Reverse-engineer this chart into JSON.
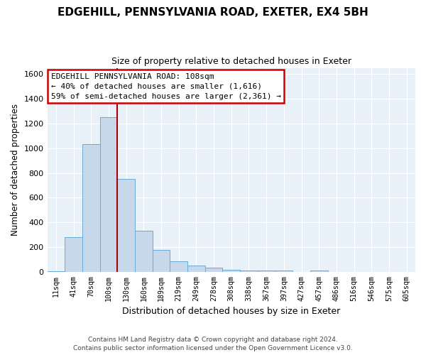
{
  "title": "EDGEHILL, PENNSYLVANIA ROAD, EXETER, EX4 5BH",
  "subtitle": "Size of property relative to detached houses in Exeter",
  "xlabel": "Distribution of detached houses by size in Exeter",
  "ylabel": "Number of detached properties",
  "bar_labels": [
    "11sqm",
    "41sqm",
    "70sqm",
    "100sqm",
    "130sqm",
    "160sqm",
    "189sqm",
    "219sqm",
    "249sqm",
    "278sqm",
    "308sqm",
    "338sqm",
    "367sqm",
    "397sqm",
    "427sqm",
    "457sqm",
    "486sqm",
    "516sqm",
    "546sqm",
    "575sqm",
    "605sqm"
  ],
  "bar_values": [
    5,
    280,
    1035,
    1250,
    750,
    330,
    175,
    85,
    48,
    35,
    18,
    8,
    8,
    8,
    0,
    8,
    0,
    0,
    0,
    0,
    0
  ],
  "bar_color": "#c8d8eb",
  "bar_edge_color": "#6aaad4",
  "vline_color": "#aa0000",
  "ylim": [
    0,
    1650
  ],
  "yticks": [
    0,
    200,
    400,
    600,
    800,
    1000,
    1200,
    1400,
    1600
  ],
  "annotation_title": "EDGEHILL PENNSYLVANIA ROAD: 108sqm",
  "annotation_line1": "← 40% of detached houses are smaller (1,616)",
  "annotation_line2": "59% of semi-detached houses are larger (2,361) →",
  "annotation_box_color": "#ffffff",
  "annotation_box_edge": "#cc0000",
  "footer1": "Contains HM Land Registry data © Crown copyright and database right 2024.",
  "footer2": "Contains public sector information licensed under the Open Government Licence v3.0.",
  "background_color": "#ffffff",
  "plot_bg_color": "#e8f0f8",
  "grid_color": "#ffffff"
}
